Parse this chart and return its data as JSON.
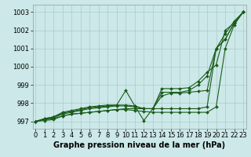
{
  "x": [
    0,
    1,
    2,
    3,
    4,
    5,
    6,
    7,
    8,
    9,
    10,
    11,
    12,
    13,
    14,
    15,
    16,
    17,
    18,
    19,
    20,
    21,
    22,
    23
  ],
  "line1": [
    997.0,
    997.1,
    997.15,
    997.3,
    997.4,
    997.45,
    997.5,
    997.55,
    997.6,
    997.65,
    997.7,
    997.7,
    997.7,
    997.7,
    997.7,
    997.7,
    997.7,
    997.7,
    997.7,
    997.8,
    1001.0,
    1001.5,
    1002.4,
    1003.0
  ],
  "line2": [
    997.0,
    997.1,
    997.2,
    997.4,
    997.5,
    997.6,
    997.7,
    997.75,
    997.8,
    997.85,
    997.85,
    997.8,
    997.7,
    997.7,
    998.4,
    998.55,
    998.55,
    998.6,
    998.65,
    998.7,
    1001.0,
    1001.5,
    1002.4,
    1003.0
  ],
  "line3": [
    997.0,
    997.15,
    997.25,
    997.45,
    997.55,
    997.65,
    997.75,
    997.8,
    997.85,
    997.9,
    997.9,
    997.85,
    997.7,
    997.7,
    998.6,
    998.6,
    998.6,
    998.7,
    999.0,
    999.5,
    1001.0,
    1001.8,
    1002.5,
    1003.0
  ],
  "line4": [
    997.0,
    997.15,
    997.25,
    997.5,
    997.6,
    997.7,
    997.8,
    997.85,
    997.9,
    997.9,
    998.7,
    997.85,
    997.05,
    997.7,
    998.8,
    998.8,
    998.8,
    998.85,
    999.2,
    999.7,
    1000.1,
    1002.0,
    1002.4,
    1003.0
  ],
  "line5": [
    997.0,
    997.05,
    997.1,
    997.3,
    997.4,
    997.45,
    997.5,
    997.55,
    997.6,
    997.65,
    997.65,
    997.6,
    997.55,
    997.5,
    997.5,
    997.5,
    997.5,
    997.5,
    997.5,
    997.5,
    997.8,
    1001.0,
    1002.3,
    1003.0
  ],
  "ylim": [
    996.6,
    1003.4
  ],
  "xlim": [
    -0.3,
    23.3
  ],
  "yticks": [
    997,
    998,
    999,
    1000,
    1001,
    1002,
    1003
  ],
  "xticks": [
    0,
    1,
    2,
    3,
    4,
    5,
    6,
    7,
    8,
    9,
    10,
    11,
    12,
    13,
    14,
    15,
    16,
    17,
    18,
    19,
    20,
    21,
    22,
    23
  ],
  "line_color": "#1a5c1a",
  "bg_color": "#cce8e8",
  "grid_color": "#aacccc",
  "xlabel": "Graphe pression niveau de la mer (hPa)",
  "xlabel_fontsize": 7,
  "tick_fontsize": 6,
  "marker": "D",
  "markersize": 2.0,
  "linewidth": 0.8
}
